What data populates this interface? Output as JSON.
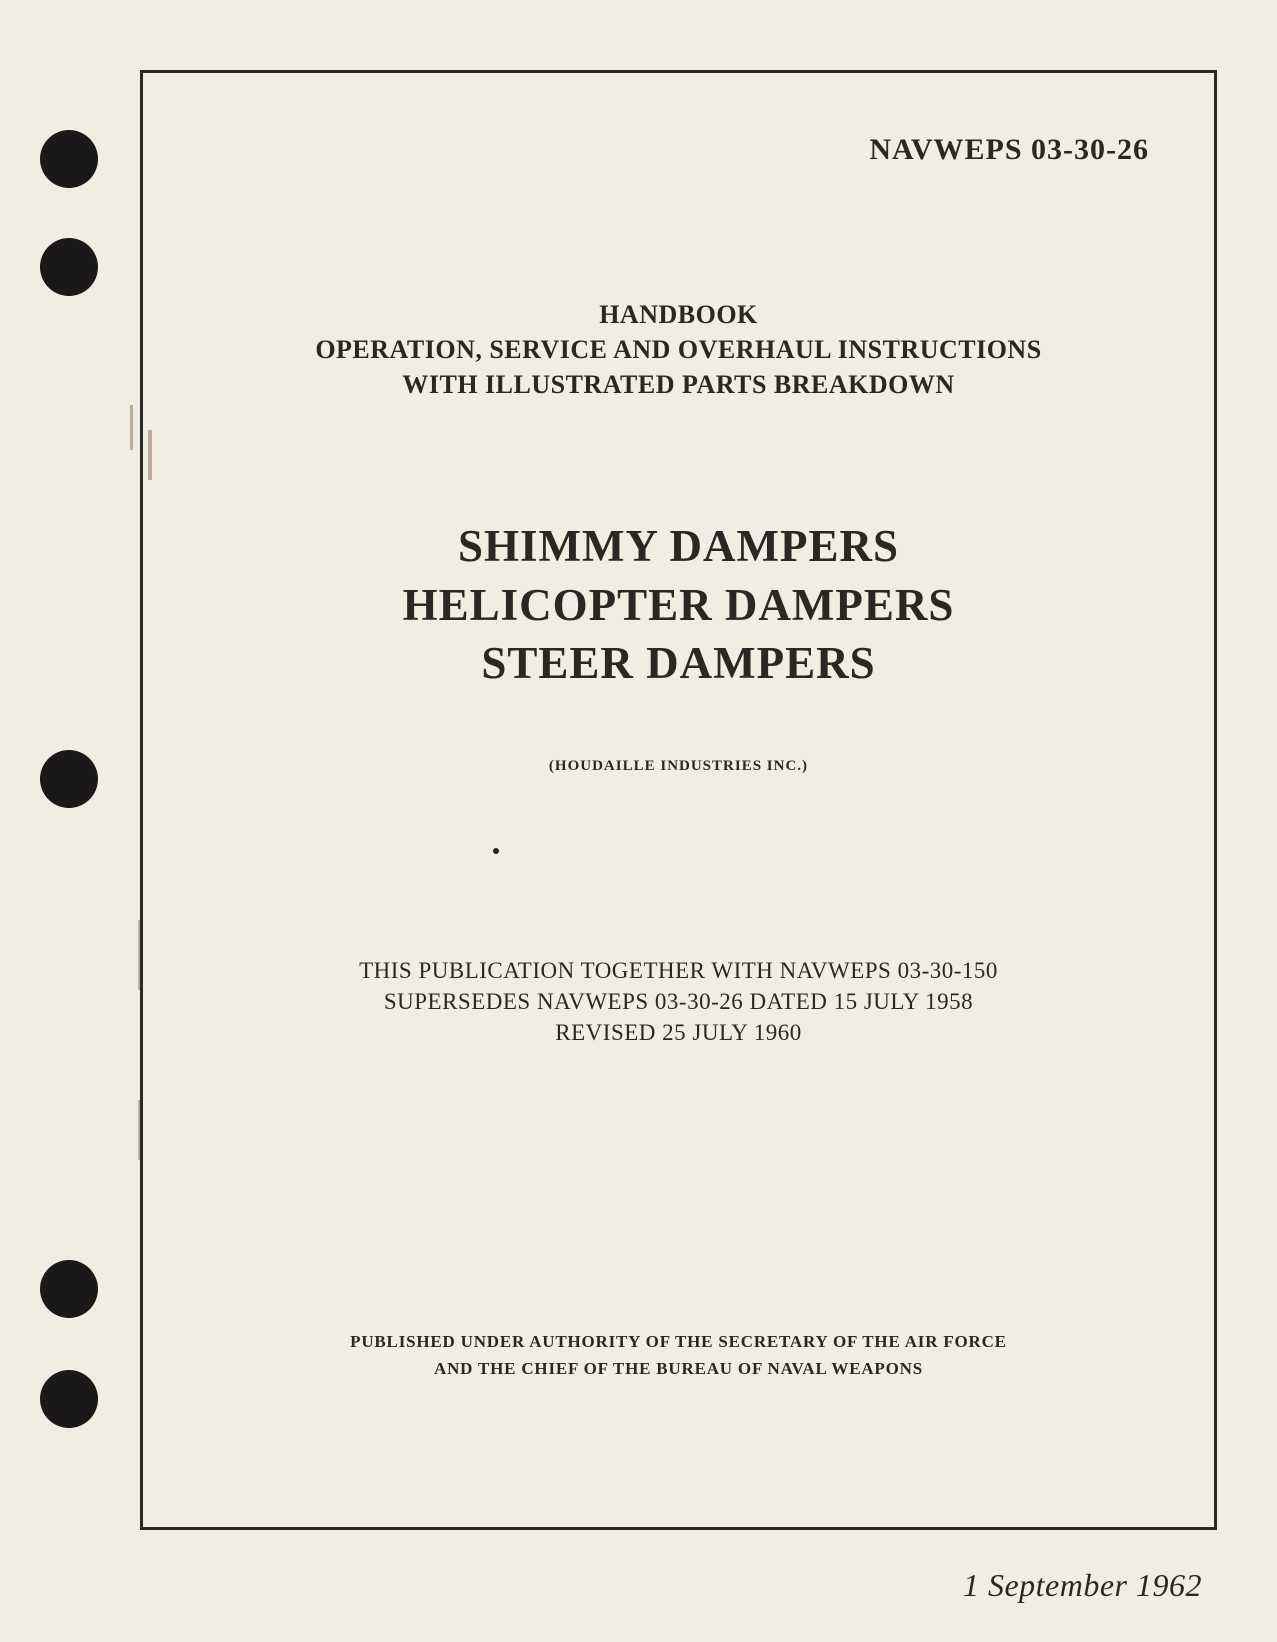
{
  "document": {
    "id": "NAVWEPS 03-30-26",
    "header_line1": "HANDBOOK",
    "header_line2": "OPERATION, SERVICE AND OVERHAUL INSTRUCTIONS",
    "header_line3": "WITH ILLUSTRATED PARTS BREAKDOWN",
    "title_line1": "SHIMMY DAMPERS",
    "title_line2": "HELICOPTER DAMPERS",
    "title_line3": "STEER DAMPERS",
    "manufacturer": "(HOUDAILLE INDUSTRIES INC.)",
    "supersession_line1": "THIS PUBLICATION TOGETHER WITH NAVWEPS 03-30-150",
    "supersession_line2": "SUPERSEDES NAVWEPS 03-30-26 DATED 15 JULY 1958",
    "supersession_line3": "REVISED 25 JULY 1960",
    "authority_line1": "PUBLISHED UNDER AUTHORITY OF THE SECRETARY OF THE AIR FORCE",
    "authority_line2": "AND THE CHIEF OF THE BUREAU OF NAVAL WEAPONS",
    "date": "1 September 1962"
  },
  "styling": {
    "page_bg": "#f0ede2",
    "text_color": "#2a2825",
    "border_color": "#2a2825",
    "punch_hole_color": "#1a1818",
    "artifact_color": "#8a7055",
    "doc_id_fontsize": 30,
    "header_fontsize": 26,
    "title_fontsize": 45,
    "manufacturer_fontsize": 15,
    "supersession_fontsize": 23,
    "authority_fontsize": 17,
    "date_fontsize": 32,
    "border_width": 3
  }
}
